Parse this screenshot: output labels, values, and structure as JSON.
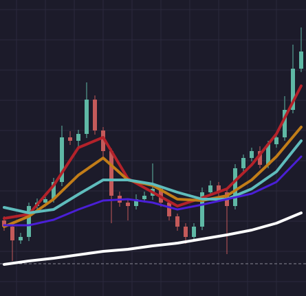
{
  "chart_data": {
    "type": "candlestick",
    "background": "#1c1b2a",
    "grid": true,
    "grid_color": "#2b2a3d",
    "xlim": [
      -0.5,
      36.583
    ],
    "ylim": [
      0,
      431
    ],
    "xticks": [
      1.5,
      5,
      8.5,
      12,
      15.5,
      19,
      22.5,
      26,
      29.5,
      33
    ],
    "yticks": [
      21,
      65,
      109,
      153,
      197,
      241,
      285,
      329,
      373,
      417
    ],
    "up_color": "#5fb8a5",
    "down_color": "#c45a5a",
    "open": [
      110,
      101,
      81,
      86,
      131,
      136,
      141,
      166,
      231,
      226,
      236,
      286,
      241,
      211,
      146,
      136,
      131,
      141,
      146,
      156,
      136,
      116,
      101,
      86,
      101,
      151,
      161,
      151,
      131,
      186,
      201,
      211,
      191,
      221,
      231,
      271,
      331
    ],
    "high": [
      116,
      106,
      92,
      136,
      142,
      150,
      172,
      248,
      240,
      242,
      311,
      292,
      246,
      215,
      152,
      142,
      148,
      152,
      193,
      160,
      140,
      120,
      106,
      106,
      158,
      168,
      166,
      156,
      192,
      206,
      216,
      218,
      226,
      236,
      291,
      366,
      391
    ],
    "low": [
      95,
      51,
      76,
      80,
      126,
      130,
      136,
      160,
      220,
      218,
      230,
      235,
      200,
      106,
      130,
      110,
      126,
      136,
      140,
      130,
      110,
      95,
      76,
      80,
      96,
      146,
      145,
      61,
      126,
      180,
      196,
      186,
      186,
      216,
      226,
      266,
      326
    ],
    "close": [
      101,
      81,
      86,
      131,
      136,
      141,
      166,
      231,
      226,
      236,
      286,
      241,
      211,
      146,
      136,
      131,
      141,
      146,
      156,
      136,
      116,
      101,
      86,
      101,
      151,
      161,
      151,
      131,
      186,
      201,
      211,
      191,
      221,
      231,
      271,
      331,
      356
    ],
    "series": [
      {
        "color": "#ffffff",
        "width": 4,
        "x": [
          0,
          3,
          6,
          9,
          12,
          15,
          18,
          21,
          24,
          27,
          30,
          33,
          36
        ],
        "values": [
          46,
          51,
          55,
          60,
          65,
          68,
          73,
          77,
          83,
          89,
          96,
          106,
          121
        ]
      },
      {
        "color": "#4a1fd6",
        "width": 3,
        "x": [
          0,
          3,
          6,
          9,
          12,
          15,
          18,
          21,
          24,
          27,
          30,
          33,
          36
        ],
        "values": [
          103,
          103,
          111,
          126,
          139,
          141,
          136,
          126,
          133,
          141,
          149,
          166,
          203
        ]
      },
      {
        "color": "#5fbcbc",
        "width": 4,
        "x": [
          0,
          3,
          6,
          9,
          12,
          15,
          18,
          21,
          24,
          27,
          30,
          33,
          36
        ],
        "values": [
          129,
          121,
          126,
          148,
          169,
          169,
          163,
          151,
          141,
          141,
          156,
          181,
          226
        ]
      },
      {
        "color": "#c27d18",
        "width": 4,
        "x": [
          0,
          3,
          6,
          9,
          12,
          15,
          18,
          21,
          24,
          27,
          30,
          33,
          36
        ],
        "values": [
          101,
          116,
          141,
          176,
          201,
          169,
          161,
          141,
          139,
          146,
          169,
          203,
          246
        ]
      },
      {
        "color": "#b3222a",
        "width": 4,
        "x": [
          0,
          3,
          6,
          9,
          12,
          15,
          18,
          21,
          24,
          27,
          30,
          33,
          36
        ],
        "values": [
          113,
          119,
          161,
          216,
          231,
          171,
          151,
          131,
          143,
          156,
          191,
          236,
          306
        ]
      }
    ],
    "reference_line": 47,
    "reference_color": "#8a8a95"
  }
}
